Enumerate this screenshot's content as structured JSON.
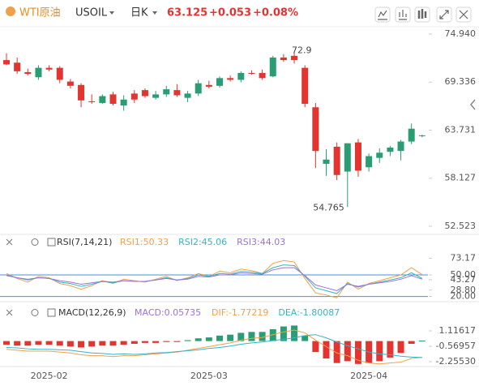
{
  "header": {
    "symbol": "WTI原油",
    "code": "USOIL",
    "period": "日K",
    "price": "63.125",
    "change": "+0.053",
    "change_pct": "+0.08%"
  },
  "chart_data": [
    {
      "type": "candlestick",
      "categories": [
        null,
        null,
        null,
        null,
        "2025-02",
        null,
        null,
        null,
        null,
        null,
        null,
        null,
        null,
        null,
        null,
        null,
        null,
        null,
        null,
        "2025-03",
        null,
        null,
        null,
        null,
        null,
        null,
        null,
        null,
        null,
        null,
        null,
        null,
        null,
        null,
        "2025-04",
        null,
        null,
        null,
        null,
        null
      ],
      "open": [
        71.9,
        71.6,
        70.5,
        69.9,
        71.0,
        71.0,
        69.4,
        69.0,
        67.1,
        66.9,
        67.9,
        66.6,
        68.0,
        68.4,
        67.5,
        67.9,
        68.4,
        67.5,
        68.0,
        69.0,
        68.9,
        69.8,
        69.6,
        70.4,
        70.4,
        70.0,
        72.2,
        72.4,
        71.0,
        66.4,
        59.8,
        61.8,
        58.9,
        62.3,
        59.4,
        60.5,
        61.2,
        61.3,
        62.4,
        63.1
      ],
      "high": [
        72.698,
        72.2,
        70.9,
        71.3,
        71.3,
        71.2,
        69.7,
        69.2,
        67.9,
        67.9,
        68.2,
        67.8,
        68.4,
        68.6,
        68.3,
        68.9,
        69.1,
        68.3,
        69.6,
        69.5,
        70.0,
        70.1,
        70.6,
        70.7,
        70.8,
        72.4,
        72.6,
        72.9,
        71.3,
        66.9,
        61.5,
        62.3,
        62.2,
        62.7,
        61.0,
        61.6,
        61.9,
        62.6,
        64.5,
        63.2
      ],
      "low": [
        71.3,
        70.3,
        70.1,
        69.6,
        70.6,
        69.2,
        68.6,
        66.4,
        66.8,
        66.8,
        66.6,
        66.0,
        66.9,
        67.5,
        67.3,
        67.6,
        67.6,
        67.0,
        67.7,
        68.6,
        68.7,
        69.4,
        69.3,
        70.2,
        69.6,
        69.9,
        71.7,
        71.5,
        66.4,
        59.3,
        58.4,
        57.9,
        54.765,
        58.3,
        58.9,
        59.9,
        60.7,
        60.2,
        62.1,
        62.9
      ],
      "close": [
        71.4,
        70.6,
        70.3,
        71.0,
        70.8,
        69.6,
        68.9,
        67.2,
        67.0,
        67.7,
        66.8,
        67.3,
        67.3,
        67.7,
        67.9,
        68.5,
        67.8,
        68.0,
        69.2,
        68.8,
        69.8,
        69.6,
        70.4,
        70.3,
        69.8,
        72.2,
        71.9,
        71.9,
        66.8,
        61.3,
        60.3,
        58.5,
        62.2,
        59.0,
        60.7,
        61.1,
        61.7,
        62.4,
        63.9,
        63.125
      ],
      "up_color": "#2a9d74",
      "down_color": "#e3342f",
      "ylim": [
        51.67,
        75.6
      ],
      "yticks": [
        {
          "value": 74.94,
          "label": "74.940"
        },
        69.336,
        63.731,
        58.127,
        52.523
      ]
    },
    {
      "type": "line",
      "title": "RSI(7,14,21)",
      "series": [
        {
          "name": "RSI1:50.33",
          "color": "#f0a04b",
          "values": [
            52,
            45,
            40,
            48,
            46,
            38,
            35,
            30,
            35,
            42,
            38,
            44,
            42,
            40,
            44,
            48,
            42,
            46,
            52,
            48,
            55,
            53,
            58,
            56,
            52,
            66,
            70,
            68,
            45,
            25,
            22,
            18,
            40,
            30,
            38,
            42,
            46,
            50,
            60,
            50.33
          ]
        },
        {
          "name": "RSI2:45.06",
          "color": "#37b3c6",
          "values": [
            50,
            46,
            43,
            46,
            45,
            40,
            38,
            34,
            37,
            41,
            39,
            42,
            41,
            41,
            43,
            46,
            43,
            45,
            50,
            48,
            52,
            51,
            55,
            54,
            52,
            60,
            64,
            63,
            48,
            32,
            28,
            24,
            38,
            33,
            37,
            40,
            43,
            46,
            53,
            45.06
          ]
        },
        {
          "name": "RSI3:44.03",
          "color": "#9b72d6",
          "values": [
            49,
            46,
            44,
            46,
            45,
            42,
            40,
            37,
            39,
            41,
            40,
            42,
            41,
            41,
            43,
            45,
            43,
            44,
            48,
            47,
            50,
            50,
            53,
            52,
            51,
            57,
            60,
            60,
            49,
            36,
            32,
            28,
            37,
            34,
            37,
            39,
            41,
            44,
            49,
            44.03
          ]
        }
      ],
      "ylim": [
        15,
        85
      ],
      "yticks": [
        73.17,
        {
          "value": 50,
          "label": "50.00"
        },
        43.27,
        {
          "value": 28.8,
          "label": "28.80"
        },
        {
          "value": 20,
          "label": "20.00"
        }
      ],
      "reference_lines": [
        50,
        20
      ],
      "reference_color": "#4a8fd6"
    },
    {
      "type": "macd",
      "title": "MACD(12,26,9)",
      "label": "MACD:0.05735",
      "label_color": "#9b72d6",
      "histogram": [
        -0.4,
        -0.5,
        -0.5,
        -0.4,
        -0.4,
        -0.5,
        -0.6,
        -0.7,
        -0.6,
        -0.5,
        -0.5,
        -0.4,
        -0.3,
        -0.2,
        -0.2,
        -0.1,
        -0.1,
        0.1,
        0.3,
        0.4,
        0.6,
        0.7,
        0.9,
        1.0,
        1.0,
        1.3,
        1.6,
        1.7,
        0.6,
        -1.2,
        -1.9,
        -2.4,
        -2.2,
        -2.5,
        -2.4,
        -2.2,
        -1.8,
        -1.3,
        -0.3,
        0.05735
      ],
      "up_color": "#2a9d74",
      "down_color": "#e3342f",
      "series": [
        {
          "name": "DIF:-1.77219",
          "color": "#f0a04b",
          "values": [
            -0.9,
            -1.0,
            -1.1,
            -1.1,
            -1.1,
            -1.2,
            -1.3,
            -1.5,
            -1.6,
            -1.6,
            -1.7,
            -1.6,
            -1.6,
            -1.5,
            -1.4,
            -1.3,
            -1.2,
            -1.0,
            -0.8,
            -0.6,
            -0.4,
            -0.2,
            0.1,
            0.3,
            0.4,
            0.7,
            1.0,
            1.2,
            0.9,
            0.1,
            -0.6,
            -1.3,
            -1.6,
            -2.1,
            -2.4,
            -2.5,
            -2.4,
            -2.3,
            -1.9,
            -1.77219
          ]
        },
        {
          "name": "DEA:-1.80087",
          "color": "#37b3c6",
          "values": [
            -0.7,
            -0.75,
            -0.85,
            -0.9,
            -0.9,
            -0.95,
            -1.0,
            -1.15,
            -1.3,
            -1.35,
            -1.45,
            -1.4,
            -1.45,
            -1.4,
            -1.3,
            -1.25,
            -1.15,
            -1.05,
            -0.95,
            -0.8,
            -0.7,
            -0.55,
            -0.35,
            -0.2,
            -0.1,
            0.05,
            0.2,
            0.35,
            0.6,
            0.7,
            0.35,
            -0.1,
            -0.5,
            -0.85,
            -1.2,
            -1.4,
            -1.5,
            -1.65,
            -1.75,
            -1.80087
          ]
        }
      ],
      "ylim": [
        -3.05,
        2.27
      ],
      "yticks": [
        1.11617,
        -0.56957,
        {
          "value": -2.2553,
          "label": "-2.25530"
        }
      ]
    }
  ]
}
